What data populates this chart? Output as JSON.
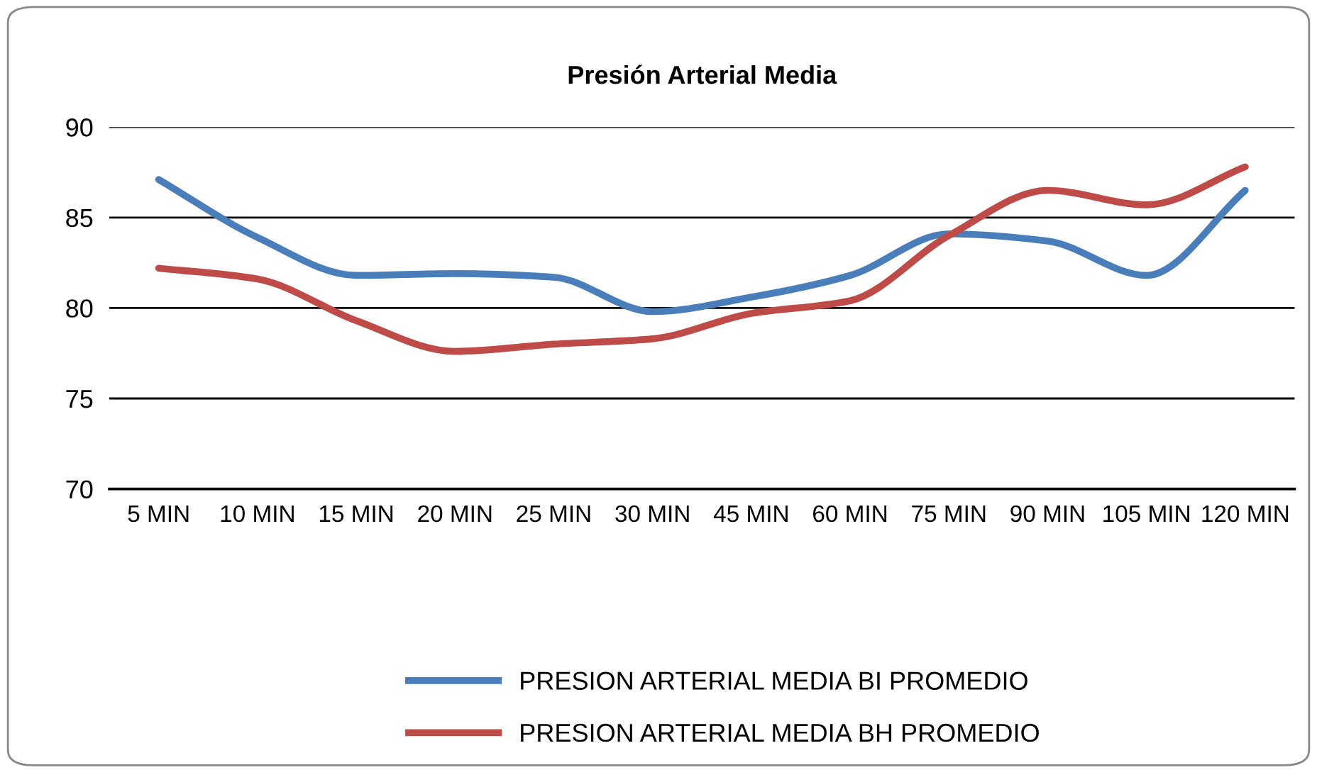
{
  "chart_data": {
    "type": "line",
    "title": "Presión Arterial Media",
    "categories": [
      "5 MIN",
      "10 MIN",
      "15 MIN",
      "20 MIN",
      "25 MIN",
      "30 MIN",
      "45 MIN",
      "60 MIN",
      "75 MIN",
      "90 MIN",
      "105 MIN",
      "120 MIN"
    ],
    "series": [
      {
        "name": "PRESION ARTERIAL MEDIA BI PROMEDIO",
        "color": "#4a7ebb",
        "values": [
          87.1,
          83.9,
          81.8,
          81.9,
          81.7,
          79.8,
          80.6,
          81.8,
          84.1,
          83.7,
          81.8,
          86.5
        ]
      },
      {
        "name": "PRESION ARTERIAL MEDIA BH PROMEDIO",
        "color": "#be4b48",
        "values": [
          82.2,
          81.6,
          79.3,
          77.6,
          78.0,
          78.3,
          79.7,
          80.4,
          84.0,
          86.5,
          85.7,
          87.8
        ]
      }
    ],
    "ylim": [
      70,
      90
    ],
    "yticks": [
      70,
      75,
      80,
      85,
      90
    ],
    "grid": "y",
    "legend": "bottom",
    "marker": "none",
    "line_style": "solid"
  }
}
